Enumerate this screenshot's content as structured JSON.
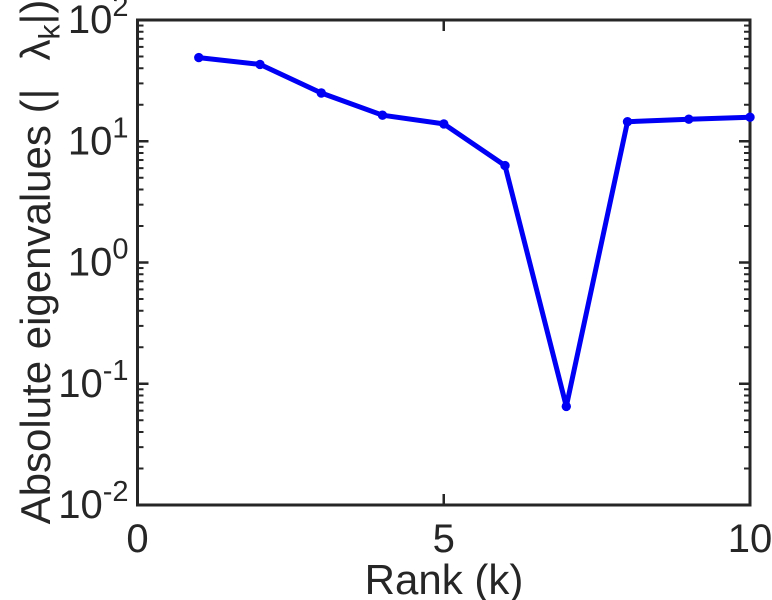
{
  "figure": {
    "background_color": "#ffffff",
    "axis_color": "#262626",
    "line_color": "#0000f5"
  },
  "chart_data": {
    "type": "line",
    "title": "",
    "xlabel": "Rank (k)",
    "ylabel": "Absolute eigenvalues (| λ_k |)",
    "ylabel_parts": {
      "prefix": "Absolute eigenvalues (|",
      "symbol": "λ",
      "subscript": "k",
      "suffix": "|)"
    },
    "x": [
      1,
      2,
      3,
      4,
      5,
      6,
      7,
      8,
      9,
      10
    ],
    "values": [
      49,
      43,
      25,
      16.4,
      13.9,
      6.3,
      0.065,
      14.5,
      15.2,
      15.8
    ],
    "series_name": "absolute-eigenvalues",
    "xlim": [
      0,
      10
    ],
    "xticks": [
      0,
      5,
      10
    ],
    "xtick_labels": [
      "0",
      "5",
      "10"
    ],
    "yscale": "log",
    "ylim": [
      0.01,
      100
    ],
    "ytick_exponents": [
      2,
      1,
      0,
      -1,
      -2
    ],
    "ytick_labels": [
      "10^2",
      "10^1",
      "10^0",
      "10^-1",
      "10^-2"
    ],
    "grid": false,
    "legend": null,
    "marker": "circle",
    "tick_direction": "in",
    "box": true
  }
}
